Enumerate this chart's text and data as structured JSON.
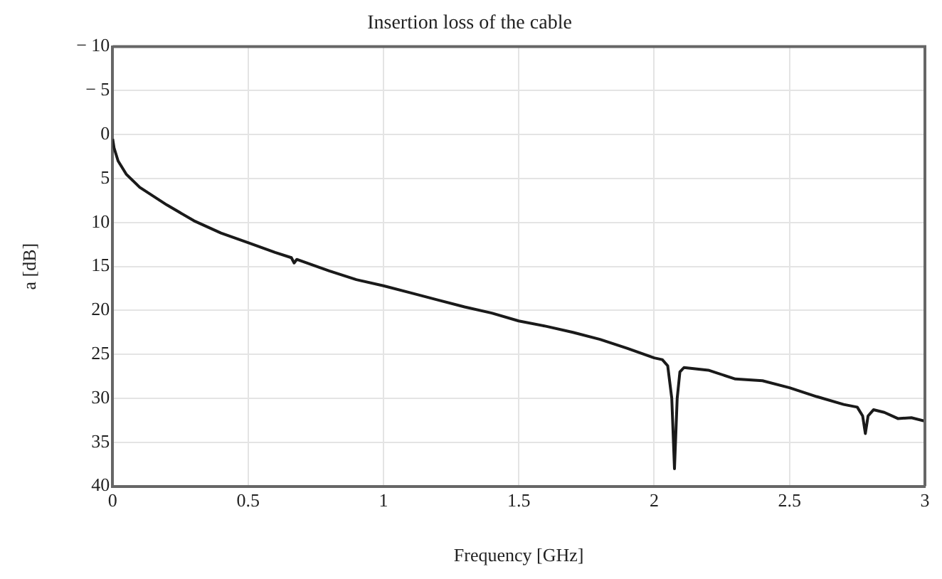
{
  "chart_data": {
    "type": "line",
    "title": "Insertion loss of the cable",
    "xlabel": "Frequency [GHz]",
    "ylabel": "a [dB]",
    "xlim": [
      0,
      3
    ],
    "xticks": [
      0,
      0.5,
      1,
      1.5,
      2,
      2.5,
      3
    ],
    "ylim": [
      40,
      -10
    ],
    "yticks": [
      {
        "value": -10,
        "label": "− 10"
      },
      {
        "value": -5,
        "label": "− 5"
      },
      0,
      5,
      10,
      15,
      20,
      25,
      30,
      35,
      40
    ],
    "grid": true,
    "legend": false,
    "marker": "none",
    "line_style": "solid",
    "series": [
      {
        "color": "#1a1a1a",
        "x": [
          0,
          0.005,
          0.02,
          0.05,
          0.1,
          0.2,
          0.3,
          0.4,
          0.5,
          0.6,
          0.66,
          0.67,
          0.68,
          0.8,
          0.9,
          1.0,
          1.1,
          1.2,
          1.3,
          1.4,
          1.5,
          1.6,
          1.7,
          1.8,
          1.9,
          2.0,
          2.03,
          2.05,
          2.065,
          2.075,
          2.085,
          2.095,
          2.11,
          2.2,
          2.3,
          2.4,
          2.5,
          2.6,
          2.7,
          2.75,
          2.77,
          2.78,
          2.79,
          2.81,
          2.85,
          2.9,
          2.95,
          3.0
        ],
        "values": [
          0.5,
          1.5,
          3,
          4.5,
          6,
          8,
          9.8,
          11.2,
          12.3,
          13.4,
          14,
          14.6,
          14.2,
          15.5,
          16.5,
          17.2,
          18,
          18.8,
          19.6,
          20.3,
          21.2,
          21.8,
          22.5,
          23.3,
          24.3,
          25.4,
          25.6,
          26.3,
          30,
          38,
          30,
          27,
          26.5,
          26.8,
          27.8,
          28,
          28.8,
          29.8,
          30.7,
          31,
          32,
          34,
          32,
          31.3,
          31.6,
          32.3,
          32.2,
          32.6
        ]
      }
    ]
  }
}
